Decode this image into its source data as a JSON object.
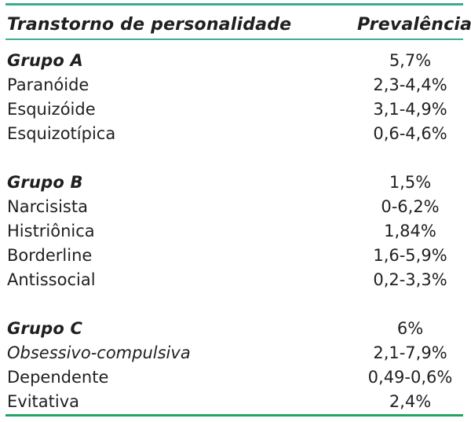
{
  "colors": {
    "rule_top": "#3cab8f",
    "rule_header": "#3fae93",
    "rule_bottom": "#22a563",
    "text": "#1f1f1f",
    "background": "#ffffff"
  },
  "table": {
    "header": {
      "disorder": "Transtorno de personalidade",
      "prevalence": "Prevalência"
    },
    "rows": [
      {
        "label": "Grupo A",
        "value": "5,7%"
      },
      {
        "label": "Paranóide",
        "value": "2,3-4,4%"
      },
      {
        "label": "Esquizóide",
        "value": "3,1-4,9%"
      },
      {
        "label": "Esquizotípica",
        "value": "0,6-4,6%"
      },
      {
        "label": "Grupo B",
        "value": "1,5%"
      },
      {
        "label": "Narcisista",
        "value": "0-6,2%"
      },
      {
        "label": "Histriônica",
        "value": "1,84%"
      },
      {
        "label": "Borderline",
        "value": "1,6-5,9%"
      },
      {
        "label": "Antissocial",
        "value": "0,2-3,3%"
      },
      {
        "label": "Grupo C",
        "value": "6%"
      },
      {
        "label": "Obsessivo-compulsiva",
        "value": "2,1-7,9%"
      },
      {
        "label": "Dependente",
        "value": "0,49-0,6%"
      },
      {
        "label": "Evitativa",
        "value": "2,4%"
      }
    ]
  }
}
